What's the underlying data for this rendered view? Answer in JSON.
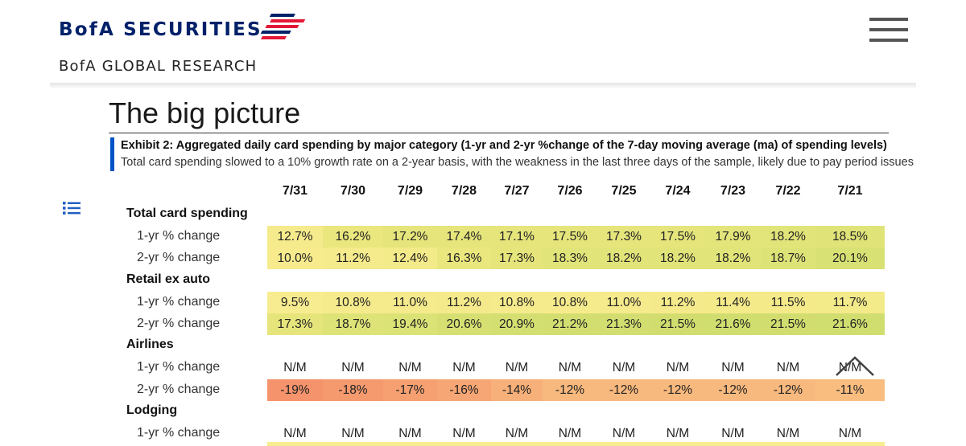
{
  "header": {
    "brand": "BofA SECURITIES",
    "sub_brand": "BofA GLOBAL RESEARCH",
    "brand_color": "#012169",
    "flag_colors": [
      "#012169",
      "#e31837"
    ]
  },
  "page": {
    "title": "The big picture"
  },
  "exhibit": {
    "title": "Exhibit 2: Aggregated daily card spending by major category (1-yr and 2-yr %change of the 7-day moving average (ma) of spending levels)",
    "subtitle": "Total card spending slowed to a 10% growth rate on a 2-year basis, with the weakness in the last three days of the sample, likely due to pay period issues",
    "accent": "#0053c7"
  },
  "table": {
    "columns": [
      "7/31",
      "7/30",
      "7/29",
      "7/28",
      "7/27",
      "7/26",
      "7/25",
      "7/24",
      "7/23",
      "7/22",
      "7/21"
    ],
    "categories": [
      {
        "name": "Total card spending",
        "rows": [
          {
            "label": "1-yr % change",
            "values": [
              "12.7%",
              "16.2%",
              "17.2%",
              "17.4%",
              "17.1%",
              "17.5%",
              "17.3%",
              "17.5%",
              "17.9%",
              "18.2%",
              "18.5%"
            ],
            "colors": [
              "#f5ea8c",
              "#eae77e",
              "#e6e57c",
              "#e5e57c",
              "#e6e57c",
              "#e5e57c",
              "#e6e57c",
              "#e5e57c",
              "#e3e47a",
              "#e1e479",
              "#dfe378"
            ]
          },
          {
            "label": "2-yr % change",
            "values": [
              "10.0%",
              "11.2%",
              "12.4%",
              "16.3%",
              "17.3%",
              "18.3%",
              "18.2%",
              "18.2%",
              "18.2%",
              "18.7%",
              "20.1%"
            ],
            "colors": [
              "#f7eb8d",
              "#f5ea8c",
              "#f3ea8a",
              "#e9e77e",
              "#e6e57c",
              "#e1e479",
              "#e1e479",
              "#e1e479",
              "#e1e479",
              "#dee378",
              "#d8e174"
            ]
          }
        ]
      },
      {
        "name": "Retail ex auto",
        "rows": [
          {
            "label": "1-yr % change",
            "values": [
              "9.5%",
              "10.8%",
              "11.0%",
              "11.2%",
              "10.8%",
              "10.8%",
              "11.0%",
              "11.2%",
              "11.4%",
              "11.5%",
              "11.7%"
            ],
            "colors": [
              "#f8ec90",
              "#f6eb8c",
              "#f5ea8c",
              "#f5ea8b",
              "#f6eb8c",
              "#f6eb8c",
              "#f5ea8c",
              "#f5ea8b",
              "#f4ea8a",
              "#f4ea8a",
              "#f3ea8a"
            ]
          },
          {
            "label": "2-yr % change",
            "values": [
              "17.3%",
              "18.7%",
              "19.4%",
              "20.6%",
              "20.9%",
              "21.2%",
              "21.3%",
              "21.5%",
              "21.6%",
              "21.5%",
              "21.6%"
            ],
            "colors": [
              "#e6e57c",
              "#dee378",
              "#dbe276",
              "#d6e072",
              "#d4df71",
              "#d2df70",
              "#d2df70",
              "#d1de6f",
              "#d0de6f",
              "#d1de6f",
              "#d0de6f"
            ]
          }
        ]
      },
      {
        "name": "Airlines",
        "rows": [
          {
            "label": "1-yr % change",
            "values": [
              "N/M",
              "N/M",
              "N/M",
              "N/M",
              "N/M",
              "N/M",
              "N/M",
              "N/M",
              "N/M",
              "N/M",
              "N/M"
            ],
            "colors": [
              "",
              "",
              "",
              "",
              "",
              "",
              "",
              "",
              "",
              "",
              ""
            ]
          },
          {
            "label": "2-yr % change",
            "values": [
              "-19%",
              "-18%",
              "-17%",
              "-16%",
              "-14%",
              "-12%",
              "-12%",
              "-12%",
              "-12%",
              "-12%",
              "-11%"
            ],
            "colors": [
              "#f5936c",
              "#f59a6f",
              "#f6a072",
              "#f6a674",
              "#f7b079",
              "#f8b97e",
              "#f8b97e",
              "#f8b97e",
              "#f8b97e",
              "#f8b97e",
              "#f9bd80"
            ]
          }
        ]
      },
      {
        "name": "Lodging",
        "rows": [
          {
            "label": "1-yr % change",
            "values": [
              "N/M",
              "N/M",
              "N/M",
              "N/M",
              "N/M",
              "N/M",
              "N/M",
              "N/M",
              "N/M",
              "N/M",
              "N/M"
            ],
            "colors": [
              "",
              "",
              "",
              "",
              "",
              "",
              "",
              "",
              "",
              "",
              ""
            ]
          }
        ]
      }
    ]
  },
  "icons": {
    "menu": "hamburger-menu-icon",
    "toc": "list-icon",
    "scroll_top": "chevron-up-icon"
  }
}
